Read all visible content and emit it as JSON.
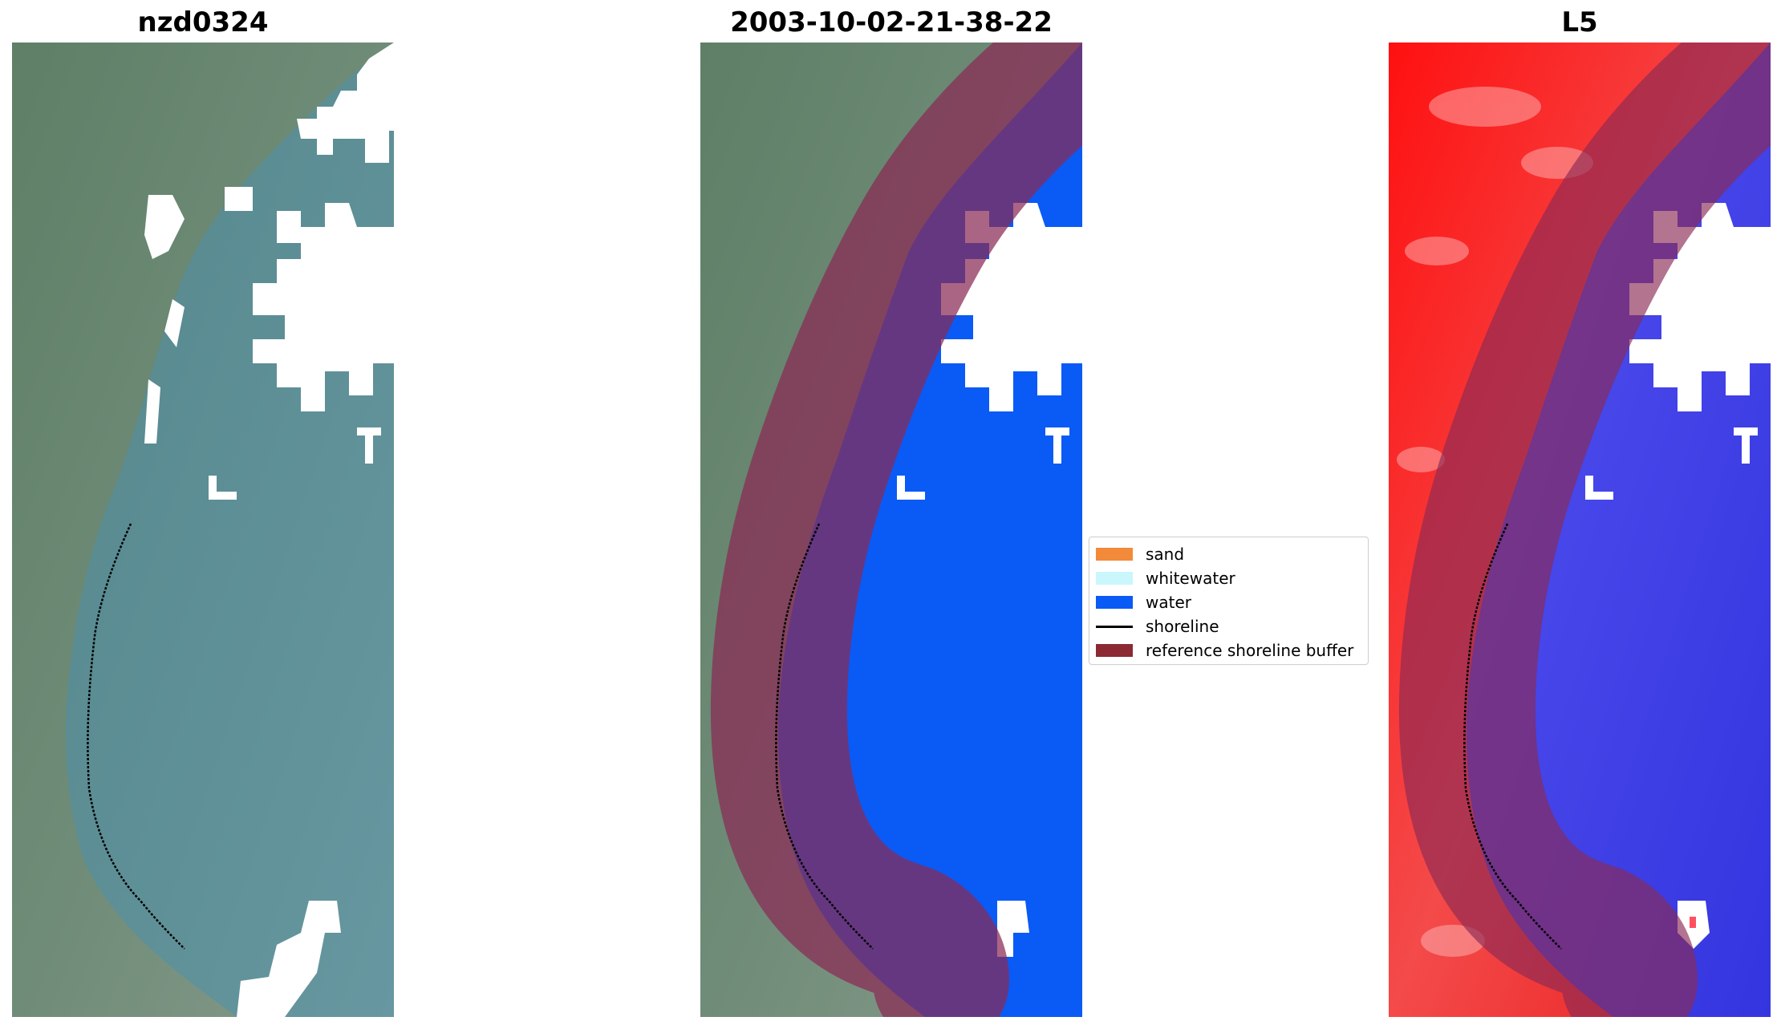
{
  "panels": [
    {
      "title": "nzd0324"
    },
    {
      "title": "2003-10-02-21-38-22"
    },
    {
      "title": "L5"
    }
  ],
  "legend": {
    "items": [
      {
        "label": "sand",
        "color": "#f28a3a",
        "kind": "patch"
      },
      {
        "label": "whitewater",
        "color": "#c9f7fb",
        "kind": "patch"
      },
      {
        "label": "water",
        "color": "#0a5af5",
        "kind": "patch"
      },
      {
        "label": "shoreline",
        "color": "#000000",
        "kind": "line"
      },
      {
        "label": "reference shoreline buffer",
        "color": "#8b2a33",
        "kind": "patch"
      }
    ]
  },
  "colors": {
    "land": "#6e8a78",
    "sea": "#5a8d92",
    "water_class": "#0a5af5",
    "buffer": "#8b2a55",
    "index_land": "#f00c0c",
    "index_water": "#3d3de8",
    "cloud_mask": "#ffffff",
    "shoreline": "#000000"
  }
}
